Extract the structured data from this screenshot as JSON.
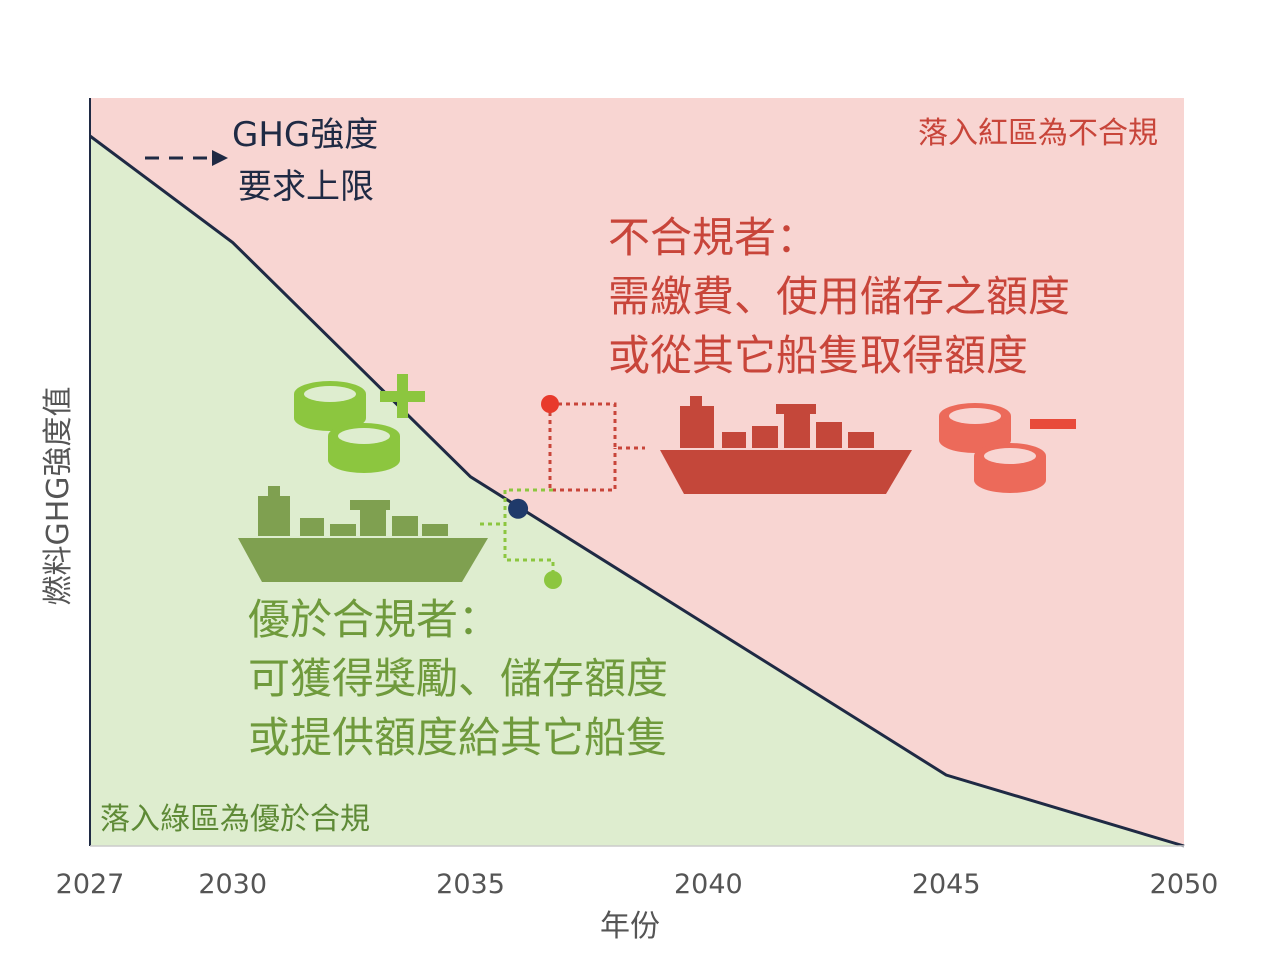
{
  "chart_data": {
    "type": "area",
    "x": [
      2027,
      2030,
      2035,
      2045,
      2050
    ],
    "y": [
      100,
      85,
      52,
      10,
      0
    ],
    "xlim": [
      2027,
      2050
    ],
    "ylim": [
      0,
      100
    ],
    "xticks": [
      "2027",
      "2030",
      "2035",
      "2040",
      "2045",
      "2050"
    ],
    "xlabel": "年份",
    "ylabel": "燃料GHG強度值",
    "grid": false,
    "marker": {
      "x": 2036,
      "y": 47.5
    }
  },
  "annotations": {
    "limit_line_label": [
      "GHG強度",
      "要求上限"
    ],
    "red_zone_label": "落入紅區為不合規",
    "green_zone_label": "落入綠區為優於合規",
    "noncompliant": [
      "不合規者：",
      "需繳費、使用儲存之額度",
      "或從其它船隻取得額度"
    ],
    "compliant": [
      "優於合規者：",
      "可獲得獎勵、儲存額度",
      "或提供額度給其它船隻"
    ]
  },
  "colors": {
    "red_zone": "#f8d5d2",
    "green_zone": "#deedcf",
    "limit_line": "#1f2a44",
    "red_accent": "#c8453a",
    "coin_red": "#ec6a5a",
    "green_accent": "#6f9a3c",
    "coin_green": "#8cc63f"
  },
  "icons": {
    "red_ship": "cargo-ship-icon",
    "green_ship": "cargo-ship-icon",
    "red_coins": "coin-stack-minus-icon",
    "green_coins": "coin-stack-plus-icon"
  }
}
